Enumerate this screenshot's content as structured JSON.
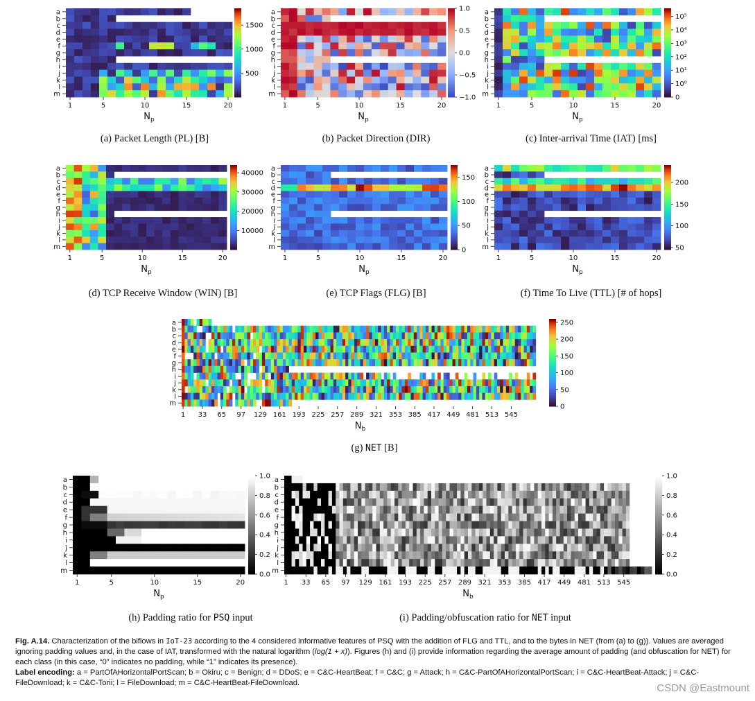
{
  "panels": [
    {
      "id": "a",
      "caption": "(a) Packet Length (PL) [B]",
      "xlabel": "N",
      "xsub": "p",
      "xticks": [
        "1",
        "5",
        "10",
        "15",
        "20"
      ],
      "cbar_ticks": [
        {
          "v": 500,
          "t": "500"
        },
        {
          "v": 1000,
          "t": "1000"
        },
        {
          "v": 1500,
          "t": "1500"
        }
      ],
      "cbar_range": [
        0,
        1850
      ],
      "cmap": "turbo",
      "cols": 20,
      "log": false
    },
    {
      "id": "b",
      "caption": "(b) Packet Direction (DIR)",
      "xlabel": "N",
      "xsub": "p",
      "xticks": [
        "1",
        "5",
        "10",
        "15",
        "20"
      ],
      "cbar_ticks": [
        {
          "v": -1,
          "t": "−1.0"
        },
        {
          "v": -0.5,
          "t": "−0.5"
        },
        {
          "v": 0,
          "t": "0.0"
        },
        {
          "v": 0.5,
          "t": "0.5"
        },
        {
          "v": 1,
          "t": "1.0"
        }
      ],
      "cbar_range": [
        -1,
        1
      ],
      "cmap": "coolwarm",
      "cols": 20,
      "log": false
    },
    {
      "id": "c",
      "caption": "(c) Inter-arrival Time (IAT) [ms]",
      "xlabel": "N",
      "xsub": "p",
      "xticks": [
        "1",
        "5",
        "10",
        "15",
        "20"
      ],
      "cbar_ticks": [
        {
          "v": 0,
          "t": "0"
        },
        {
          "v": 1,
          "t": "10⁰"
        },
        {
          "v": 2,
          "t": "10¹"
        },
        {
          "v": 3,
          "t": "10²"
        },
        {
          "v": 4,
          "t": "10³"
        },
        {
          "v": 5,
          "t": "10⁴"
        },
        {
          "v": 6,
          "t": "10⁵"
        }
      ],
      "cbar_range": [
        0,
        6.6
      ],
      "cmap": "turbo",
      "cols": 20,
      "log": true
    },
    {
      "id": "d",
      "caption": "(d) TCP Receive Window (WIN) [B]",
      "xlabel": "N",
      "xsub": "p",
      "xticks": [
        "1",
        "5",
        "10",
        "15",
        "20"
      ],
      "cbar_ticks": [
        {
          "v": 10000,
          "t": "10000"
        },
        {
          "v": 20000,
          "t": "20000"
        },
        {
          "v": 30000,
          "t": "30000"
        },
        {
          "v": 40000,
          "t": "40000"
        }
      ],
      "cbar_range": [
        0,
        44000
      ],
      "cmap": "turbo",
      "cols": 20,
      "log": false
    },
    {
      "id": "e",
      "caption": "(e) TCP Flags (FLG) [B]",
      "xlabel": "N",
      "xsub": "p",
      "xticks": [
        "1",
        "5",
        "10",
        "15",
        "20"
      ],
      "cbar_ticks": [
        {
          "v": 0,
          "t": "0"
        },
        {
          "v": 50,
          "t": "50"
        },
        {
          "v": 100,
          "t": "100"
        },
        {
          "v": 150,
          "t": "150"
        }
      ],
      "cbar_range": [
        0,
        175
      ],
      "cmap": "turbo",
      "cols": 20,
      "log": false
    },
    {
      "id": "f",
      "caption": "(f) Time To Live (TTL) [# of hops]",
      "xlabel": "N",
      "xsub": "p",
      "xticks": [
        "1",
        "5",
        "10",
        "15",
        "20"
      ],
      "cbar_ticks": [
        {
          "v": 50,
          "t": "50"
        },
        {
          "v": 100,
          "t": "100"
        },
        {
          "v": 150,
          "t": "150"
        },
        {
          "v": 200,
          "t": "200"
        }
      ],
      "cbar_range": [
        45,
        240
      ],
      "cmap": "turbo",
      "cols": 20,
      "log": false
    },
    {
      "id": "g",
      "caption_pre": "(g) ",
      "caption_mono": "NET",
      "caption_post": " [B]",
      "xlabel": "N",
      "xsub": "b",
      "xticks": [
        "1",
        "33",
        "65",
        "97",
        "129",
        "161",
        "193",
        "225",
        "257",
        "289",
        "321",
        "353",
        "385",
        "417",
        "449",
        "481",
        "513",
        "545"
      ],
      "cbar_ticks": [
        {
          "v": 0,
          "t": "0"
        },
        {
          "v": 50,
          "t": "50"
        },
        {
          "v": 100,
          "t": "100"
        },
        {
          "v": 150,
          "t": "150"
        },
        {
          "v": 200,
          "t": "200"
        },
        {
          "v": 250,
          "t": "250"
        }
      ],
      "cbar_range": [
        0,
        260
      ],
      "cmap": "turbo",
      "cols": 120,
      "log": false
    },
    {
      "id": "h",
      "caption_pre": "(h) Padding ratio for ",
      "caption_mono": "PSQ",
      "caption_post": " input",
      "xlabel": "N",
      "xsub": "p",
      "xticks": [
        "1",
        "5",
        "10",
        "15",
        "20"
      ],
      "cbar_ticks": [
        {
          "v": 0,
          "t": "0.0"
        },
        {
          "v": 0.2,
          "t": "0.2"
        },
        {
          "v": 0.4,
          "t": "0.4"
        },
        {
          "v": 0.6,
          "t": "0.6"
        },
        {
          "v": 0.8,
          "t": "0.8"
        },
        {
          "v": 1,
          "t": "1.0"
        }
      ],
      "cbar_range": [
        0,
        1
      ],
      "cmap": "gray",
      "cols": 20,
      "log": false
    },
    {
      "id": "i",
      "caption_pre": "(i) Padding/obfuscation ratio for ",
      "caption_mono": "NET",
      "caption_post": " input",
      "xlabel": "N",
      "xsub": "b",
      "xticks": [
        "1",
        "33",
        "65",
        "97",
        "129",
        "161",
        "193",
        "225",
        "257",
        "289",
        "321",
        "353",
        "385",
        "417",
        "449",
        "481",
        "513",
        "545"
      ],
      "cbar_ticks": [
        {
          "v": 0,
          "t": "0.0"
        },
        {
          "v": 0.2,
          "t": "0.2"
        },
        {
          "v": 0.4,
          "t": "0.4"
        },
        {
          "v": 0.6,
          "t": "0.6"
        },
        {
          "v": 0.8,
          "t": "0.8"
        },
        {
          "v": 1,
          "t": "1.0"
        }
      ],
      "cbar_range": [
        0,
        1
      ],
      "cmap": "gray",
      "cols": 100,
      "log": false
    }
  ],
  "row_labels": [
    "a",
    "b",
    "c",
    "d",
    "e",
    "f",
    "g",
    "h",
    "i",
    "j",
    "k",
    "l",
    "m"
  ],
  "figure_caption": {
    "fig_label": "Fig. A.14.",
    "text_1": " Characterization of the biflows in ",
    "iot": "IoT-23",
    "text_2": " according to the 4 considered informative features of ",
    "psq": "PSQ",
    "text_3": " with the addition of FLG and TTL, and to the bytes in ",
    "net1": "NET",
    "text_4": " (from (a) to (g)). Values are averaged ignoring padding values and, in the case of IAT, transformed with the natural logarithm (",
    "formula": "log(1 + x)",
    "text_5": "). Figures (h) and (i) provide information regarding the average amount of padding (and obfuscation for ",
    "net2": "NET",
    "text_6": ") for each class (in this case, “0” indicates no padding, while “1” indicates its presence).",
    "label_heading": "Label encoding:",
    "label_text": " a = PartOfAHorizontalPortScan; b = Okiru; c = Benign; d = DDoS; e = C&C-HeartBeat; f = C&C; g = Attack; h = C&C-PartOfAHorizontalPortScan; i = C&C-HeartBeat-Attack; j = C&C-FileDownload; k = C&C-Torii; l = FileDownload; m = C&C-HeartBeat-FileDownload."
  },
  "watermark": "CSDN @Eastmount",
  "chart_data": [
    {
      "type": "heatmap",
      "title": "(a) Packet Length (PL) [B]",
      "xlabel": "Np",
      "rows": [
        "a",
        "b",
        "c",
        "d",
        "e",
        "f",
        "g",
        "h",
        "i",
        "j",
        "k",
        "l",
        "m"
      ],
      "x_range": [
        1,
        20
      ],
      "value_range": [
        0,
        1850
      ],
      "colorbar_ticks": [
        500,
        1000,
        1500
      ],
      "padding_rows_from_col6": [
        "b",
        "h"
      ],
      "high_value_rows": [
        "j",
        "k",
        "l",
        "m"
      ]
    },
    {
      "type": "heatmap",
      "title": "(b) Packet Direction (DIR)",
      "xlabel": "Np",
      "rows": [
        "a",
        "b",
        "c",
        "d",
        "e",
        "f",
        "g",
        "h",
        "i",
        "j",
        "k",
        "l",
        "m"
      ],
      "x_range": [
        1,
        20
      ],
      "value_range": [
        -1,
        1
      ],
      "colorbar_ticks": [
        -1.0,
        -0.5,
        0.0,
        0.5,
        1.0
      ]
    },
    {
      "type": "heatmap",
      "title": "(c) Inter-arrival Time (IAT) [ms]",
      "xlabel": "Np",
      "rows": [
        "a",
        "b",
        "c",
        "d",
        "e",
        "f",
        "g",
        "h",
        "i",
        "j",
        "k",
        "l",
        "m"
      ],
      "x_range": [
        1,
        20
      ],
      "scale": "log",
      "colorbar_ticks": [
        "0",
        "10^0",
        "10^1",
        "10^2",
        "10^3",
        "10^4",
        "10^5"
      ]
    },
    {
      "type": "heatmap",
      "title": "(d) TCP Receive Window (WIN) [B]",
      "xlabel": "Np",
      "rows": [
        "a",
        "b",
        "c",
        "d",
        "e",
        "f",
        "g",
        "h",
        "i",
        "j",
        "k",
        "l",
        "m"
      ],
      "x_range": [
        1,
        20
      ],
      "value_range": [
        0,
        44000
      ],
      "colorbar_ticks": [
        10000,
        20000,
        30000,
        40000
      ]
    },
    {
      "type": "heatmap",
      "title": "(e) TCP Flags (FLG) [B]",
      "xlabel": "Np",
      "rows": [
        "a",
        "b",
        "c",
        "d",
        "e",
        "f",
        "g",
        "h",
        "i",
        "j",
        "k",
        "l",
        "m"
      ],
      "x_range": [
        1,
        20
      ],
      "value_range": [
        0,
        175
      ],
      "colorbar_ticks": [
        0,
        50,
        100,
        150
      ]
    },
    {
      "type": "heatmap",
      "title": "(f) Time To Live (TTL) [# of hops]",
      "xlabel": "Np",
      "rows": [
        "a",
        "b",
        "c",
        "d",
        "e",
        "f",
        "g",
        "h",
        "i",
        "j",
        "k",
        "l",
        "m"
      ],
      "x_range": [
        1,
        20
      ],
      "value_range": [
        45,
        240
      ],
      "colorbar_ticks": [
        50,
        100,
        150,
        200
      ]
    },
    {
      "type": "heatmap",
      "title": "(g) NET [B]",
      "xlabel": "Nb",
      "rows": [
        "a",
        "b",
        "c",
        "d",
        "e",
        "f",
        "g",
        "h",
        "i",
        "j",
        "k",
        "l",
        "m"
      ],
      "x_ticks": [
        1,
        33,
        65,
        97,
        129,
        161,
        193,
        225,
        257,
        289,
        321,
        353,
        385,
        417,
        449,
        481,
        513,
        545
      ],
      "value_range": [
        0,
        260
      ],
      "colorbar_ticks": [
        0,
        50,
        100,
        150,
        200,
        250
      ]
    },
    {
      "type": "heatmap",
      "title": "(h) Padding ratio for PSQ input",
      "xlabel": "Np",
      "rows": [
        "a",
        "b",
        "c",
        "d",
        "e",
        "f",
        "g",
        "h",
        "i",
        "j",
        "k",
        "l",
        "m"
      ],
      "x_range": [
        1,
        20
      ],
      "value_range": [
        0,
        1
      ],
      "colorbar_ticks": [
        0.0,
        0.2,
        0.4,
        0.6,
        0.8,
        1.0
      ]
    },
    {
      "type": "heatmap",
      "title": "(i) Padding/obfuscation ratio for NET input",
      "xlabel": "Nb",
      "rows": [
        "a",
        "b",
        "c",
        "d",
        "e",
        "f",
        "g",
        "h",
        "i",
        "j",
        "k",
        "l",
        "m"
      ],
      "x_ticks": [
        1,
        33,
        65,
        97,
        129,
        161,
        193,
        225,
        257,
        289,
        321,
        353,
        385,
        417,
        449,
        481,
        513,
        545
      ],
      "value_range": [
        0,
        1
      ],
      "colorbar_ticks": [
        0.0,
        0.2,
        0.4,
        0.6,
        0.8,
        1.0
      ]
    }
  ]
}
